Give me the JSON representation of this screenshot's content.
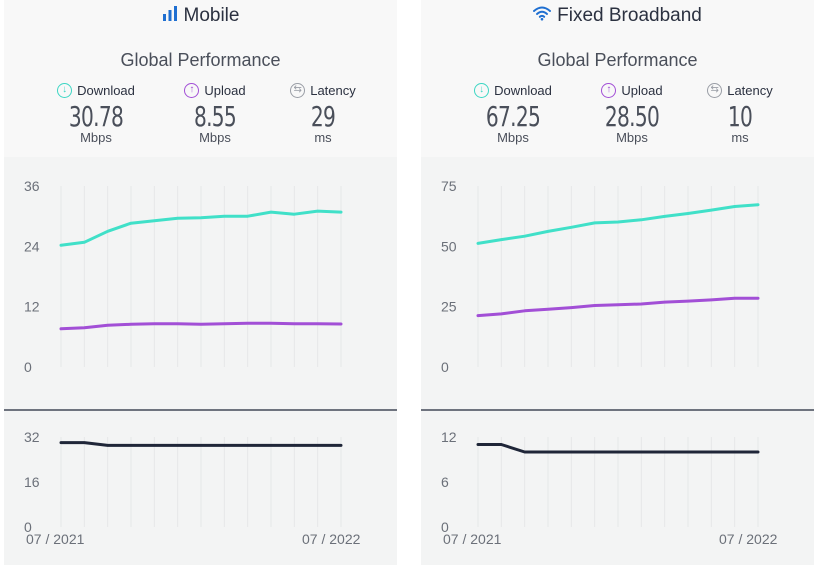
{
  "panels": [
    {
      "id": "mobile",
      "title": "Mobile",
      "icon": "signal-bars-icon",
      "subtitle": "Global Performance",
      "metrics": {
        "download": {
          "label": "Download",
          "value": "30.78",
          "unit": "Mbps"
        },
        "upload": {
          "label": "Upload",
          "value": "8.55",
          "unit": "Mbps"
        },
        "latency": {
          "label": "Latency",
          "value": "29",
          "unit": "ms"
        }
      },
      "date_start": "07 / 2021",
      "date_end": "07 / 2022"
    },
    {
      "id": "fixed",
      "title": "Fixed Broadband",
      "icon": "wifi-icon",
      "subtitle": "Global Performance",
      "metrics": {
        "download": {
          "label": "Download",
          "value": "67.25",
          "unit": "Mbps"
        },
        "upload": {
          "label": "Upload",
          "value": "28.50",
          "unit": "Mbps"
        },
        "latency": {
          "label": "Latency",
          "value": "10",
          "unit": "ms"
        }
      },
      "date_start": "07 / 2021",
      "date_end": "07 / 2022"
    }
  ],
  "colors": {
    "download": "#40e0c8",
    "upload": "#a24fd6",
    "latency": "#1f2638",
    "grid": "#e6e7e9"
  },
  "chart_data": [
    {
      "type": "line",
      "title": "",
      "x": [
        "07/2021",
        "08/2021",
        "09/2021",
        "10/2021",
        "11/2021",
        "12/2021",
        "01/2022",
        "02/2022",
        "03/2022",
        "04/2022",
        "05/2022",
        "06/2022",
        "07/2022"
      ],
      "ylim": [
        0,
        36
      ],
      "yticks": [
        "0",
        "12",
        "24",
        "36"
      ],
      "series": [
        {
          "key": "download",
          "values": [
            24.2,
            24.8,
            27.0,
            28.6,
            29.1,
            29.6,
            29.7,
            30.0,
            30.0,
            30.8,
            30.4,
            31.0,
            30.8
          ]
        },
        {
          "key": "upload",
          "values": [
            7.6,
            7.8,
            8.3,
            8.5,
            8.6,
            8.6,
            8.5,
            8.6,
            8.7,
            8.7,
            8.6,
            8.6,
            8.55
          ]
        }
      ]
    },
    {
      "type": "line",
      "title": "",
      "x": [
        "07/2021",
        "08/2021",
        "09/2021",
        "10/2021",
        "11/2021",
        "12/2021",
        "01/2022",
        "02/2022",
        "03/2022",
        "04/2022",
        "05/2022",
        "06/2022",
        "07/2022"
      ],
      "ylim": [
        0,
        32
      ],
      "yticks": [
        "0",
        "16",
        "32"
      ],
      "series": [
        {
          "key": "latency",
          "values": [
            30.0,
            30.0,
            29.0,
            29.0,
            29.0,
            29.0,
            29.0,
            29.0,
            29.0,
            29.0,
            29.0,
            29.0,
            29.0
          ]
        }
      ]
    },
    {
      "type": "line",
      "title": "",
      "x": [
        "07/2021",
        "08/2021",
        "09/2021",
        "10/2021",
        "11/2021",
        "12/2021",
        "01/2022",
        "02/2022",
        "03/2022",
        "04/2022",
        "05/2022",
        "06/2022",
        "07/2022"
      ],
      "ylim": [
        0,
        75
      ],
      "yticks": [
        "0",
        "25",
        "50",
        "75"
      ],
      "series": [
        {
          "key": "download",
          "values": [
            51.2,
            52.8,
            54.2,
            56.2,
            57.9,
            59.7,
            60.1,
            61.0,
            62.4,
            63.6,
            65.0,
            66.5,
            67.25
          ]
        },
        {
          "key": "upload",
          "values": [
            21.3,
            22.0,
            23.3,
            23.9,
            24.6,
            25.5,
            25.8,
            26.1,
            26.9,
            27.3,
            27.8,
            28.5,
            28.5
          ]
        }
      ]
    },
    {
      "type": "line",
      "title": "",
      "x": [
        "07/2021",
        "08/2021",
        "09/2021",
        "10/2021",
        "11/2021",
        "12/2021",
        "01/2022",
        "02/2022",
        "03/2022",
        "04/2022",
        "05/2022",
        "06/2022",
        "07/2022"
      ],
      "ylim": [
        0,
        12
      ],
      "yticks": [
        "0",
        "6",
        "12"
      ],
      "series": [
        {
          "key": "latency",
          "values": [
            11.0,
            11.0,
            10.0,
            10.0,
            10.0,
            10.0,
            10.0,
            10.0,
            10.0,
            10.0,
            10.0,
            10.0,
            10.0
          ]
        }
      ]
    }
  ]
}
